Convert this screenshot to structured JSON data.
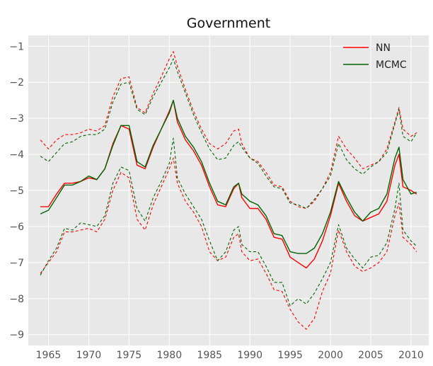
{
  "chart_data": {
    "type": "line",
    "title": "Government",
    "xlabel": "",
    "ylabel": "",
    "xlim": [
      1962.5,
      2012.2
    ],
    "ylim": [
      -9.3,
      -0.7
    ],
    "x_ticks": [
      1965,
      1970,
      1975,
      1980,
      1985,
      1990,
      1995,
      2000,
      2005,
      2010
    ],
    "x_tick_labels": [
      "1965",
      "1970",
      "1975",
      "1980",
      "1985",
      "1990",
      "1995",
      "2000",
      "2005",
      "2010"
    ],
    "y_ticks": [
      -1,
      -2,
      -3,
      -4,
      -5,
      -6,
      -7,
      -8,
      -9
    ],
    "y_tick_labels": [
      "−1",
      "−2",
      "−3",
      "−4",
      "−5",
      "−6",
      "−7",
      "−8",
      "−9"
    ],
    "grid": true,
    "legend_position": "top-right",
    "background": "#e8e8e8",
    "colors": {
      "NN": "#ff0000",
      "MCMC": "#006400"
    },
    "legend": [
      {
        "label": "NN",
        "color": "#ff0000"
      },
      {
        "label": "MCMC",
        "color": "#006400"
      }
    ],
    "series": [
      {
        "name": "NN",
        "role": "mean",
        "style": "solid",
        "x": [
          1964.0,
          1965.0,
          1966.0,
          1967.0,
          1968.0,
          1969.0,
          1970.0,
          1971.0,
          1972.0,
          1973.0,
          1974.0,
          1975.0,
          1976.0,
          1977.0,
          1978.0,
          1979.0,
          1980.0,
          1980.5,
          1981.0,
          1982.0,
          1983.0,
          1984.0,
          1985.0,
          1986.0,
          1987.0,
          1988.0,
          1988.6,
          1989.0,
          1990.0,
          1991.0,
          1992.0,
          1993.0,
          1994.0,
          1995.0,
          1996.0,
          1997.0,
          1998.0,
          1999.0,
          2000.0,
          2001.0,
          2002.0,
          2003.0,
          2004.0,
          2005.0,
          2006.0,
          2007.0,
          2008.0,
          2008.5,
          2009.0,
          2010.0,
          2010.7
        ],
        "values": [
          -5.45,
          -5.45,
          -5.1,
          -4.8,
          -4.8,
          -4.75,
          -4.65,
          -4.7,
          -4.4,
          -3.7,
          -3.2,
          -3.3,
          -4.3,
          -4.4,
          -3.8,
          -3.3,
          -2.8,
          -2.5,
          -3.1,
          -3.6,
          -3.9,
          -4.3,
          -4.9,
          -5.4,
          -5.45,
          -4.95,
          -4.8,
          -5.2,
          -5.5,
          -5.5,
          -5.8,
          -6.3,
          -6.35,
          -6.85,
          -7.0,
          -7.15,
          -6.9,
          -6.4,
          -5.7,
          -4.8,
          -5.3,
          -5.7,
          -5.85,
          -5.75,
          -5.65,
          -5.3,
          -4.3,
          -4.0,
          -4.9,
          -5.0,
          -5.1
        ]
      },
      {
        "name": "NN",
        "role": "upper",
        "style": "dashed",
        "x": [
          1964.0,
          1965.0,
          1966.0,
          1967.0,
          1968.0,
          1969.0,
          1970.0,
          1971.0,
          1972.0,
          1973.0,
          1974.0,
          1975.0,
          1976.0,
          1977.0,
          1978.0,
          1979.0,
          1980.0,
          1980.5,
          1981.0,
          1982.0,
          1983.0,
          1984.0,
          1985.0,
          1986.0,
          1987.0,
          1988.0,
          1988.6,
          1989.0,
          1990.0,
          1991.0,
          1992.0,
          1993.0,
          1994.0,
          1995.0,
          1996.0,
          1997.0,
          1998.0,
          1999.0,
          2000.0,
          2001.0,
          2002.0,
          2003.0,
          2004.0,
          2005.0,
          2006.0,
          2007.0,
          2008.0,
          2008.5,
          2009.0,
          2010.0,
          2010.7
        ],
        "values": [
          -3.6,
          -3.85,
          -3.6,
          -3.45,
          -3.45,
          -3.4,
          -3.3,
          -3.35,
          -3.2,
          -2.4,
          -1.9,
          -1.85,
          -2.7,
          -2.85,
          -2.3,
          -1.85,
          -1.35,
          -1.15,
          -1.55,
          -2.2,
          -2.8,
          -3.3,
          -3.7,
          -3.85,
          -3.7,
          -3.35,
          -3.3,
          -3.7,
          -4.1,
          -4.2,
          -4.5,
          -4.85,
          -4.9,
          -5.3,
          -5.45,
          -5.5,
          -5.3,
          -4.95,
          -4.5,
          -3.5,
          -3.85,
          -4.1,
          -4.4,
          -4.3,
          -4.2,
          -3.85,
          -3.1,
          -2.7,
          -3.3,
          -3.5,
          -3.4
        ]
      },
      {
        "name": "NN",
        "role": "lower",
        "style": "dashed",
        "x": [
          1964.0,
          1965.0,
          1966.0,
          1967.0,
          1968.0,
          1969.0,
          1970.0,
          1971.0,
          1972.0,
          1973.0,
          1974.0,
          1975.0,
          1976.0,
          1977.0,
          1978.0,
          1979.0,
          1980.0,
          1980.5,
          1981.0,
          1982.0,
          1983.0,
          1984.0,
          1985.0,
          1986.0,
          1987.0,
          1988.0,
          1988.6,
          1989.0,
          1990.0,
          1991.0,
          1992.0,
          1993.0,
          1994.0,
          1995.0,
          1996.0,
          1997.0,
          1998.0,
          1999.0,
          2000.0,
          2001.0,
          2002.0,
          2003.0,
          2004.0,
          2005.0,
          2006.0,
          2007.0,
          2008.0,
          2008.5,
          2009.0,
          2010.0,
          2010.7
        ],
        "values": [
          -7.3,
          -7.0,
          -6.7,
          -6.15,
          -6.15,
          -6.1,
          -6.05,
          -6.15,
          -5.8,
          -5.0,
          -4.5,
          -4.65,
          -5.8,
          -6.1,
          -5.4,
          -4.9,
          -4.4,
          -4.1,
          -4.8,
          -5.3,
          -5.6,
          -6.0,
          -6.7,
          -6.95,
          -6.85,
          -6.3,
          -6.2,
          -6.7,
          -6.95,
          -6.9,
          -7.3,
          -7.75,
          -7.8,
          -8.3,
          -8.65,
          -8.85,
          -8.55,
          -7.8,
          -7.3,
          -6.1,
          -6.7,
          -7.1,
          -7.25,
          -7.15,
          -7.0,
          -6.7,
          -5.7,
          -5.35,
          -6.3,
          -6.5,
          -6.7
        ]
      },
      {
        "name": "MCMC",
        "role": "mean",
        "style": "solid",
        "x": [
          1964.0,
          1965.0,
          1966.0,
          1967.0,
          1968.0,
          1969.0,
          1970.0,
          1971.0,
          1972.0,
          1973.0,
          1974.0,
          1975.0,
          1976.0,
          1977.0,
          1978.0,
          1979.0,
          1980.0,
          1980.5,
          1981.0,
          1982.0,
          1983.0,
          1984.0,
          1985.0,
          1986.0,
          1987.0,
          1988.0,
          1988.6,
          1989.0,
          1990.0,
          1991.0,
          1992.0,
          1993.0,
          1994.0,
          1995.0,
          1996.0,
          1997.0,
          1998.0,
          1999.0,
          2000.0,
          2001.0,
          2002.0,
          2003.0,
          2004.0,
          2005.0,
          2006.0,
          2007.0,
          2008.0,
          2008.5,
          2009.0,
          2010.0,
          2010.7
        ],
        "values": [
          -5.65,
          -5.55,
          -5.2,
          -4.85,
          -4.85,
          -4.75,
          -4.6,
          -4.7,
          -4.4,
          -3.75,
          -3.2,
          -3.2,
          -4.2,
          -4.35,
          -3.75,
          -3.3,
          -2.85,
          -2.5,
          -3.0,
          -3.5,
          -3.8,
          -4.2,
          -4.8,
          -5.3,
          -5.4,
          -4.9,
          -4.8,
          -5.1,
          -5.3,
          -5.4,
          -5.7,
          -6.2,
          -6.25,
          -6.7,
          -6.75,
          -6.75,
          -6.6,
          -6.2,
          -5.6,
          -4.75,
          -5.2,
          -5.6,
          -5.85,
          -5.6,
          -5.5,
          -5.1,
          -4.1,
          -3.8,
          -4.7,
          -5.1,
          -5.05
        ]
      },
      {
        "name": "MCMC",
        "role": "upper",
        "style": "dashed",
        "x": [
          1964.0,
          1965.0,
          1966.0,
          1967.0,
          1968.0,
          1969.0,
          1970.0,
          1971.0,
          1972.0,
          1973.0,
          1974.0,
          1975.0,
          1976.0,
          1977.0,
          1978.0,
          1979.0,
          1980.0,
          1980.5,
          1981.0,
          1982.0,
          1983.0,
          1984.0,
          1985.0,
          1986.0,
          1987.0,
          1988.0,
          1988.6,
          1989.0,
          1990.0,
          1991.0,
          1992.0,
          1993.0,
          1994.0,
          1995.0,
          1996.0,
          1997.0,
          1998.0,
          1999.0,
          2000.0,
          2001.0,
          2002.0,
          2003.0,
          2004.0,
          2005.0,
          2006.0,
          2007.0,
          2008.0,
          2008.5,
          2009.0,
          2010.0,
          2010.7
        ],
        "values": [
          -4.05,
          -4.2,
          -3.95,
          -3.7,
          -3.65,
          -3.5,
          -3.45,
          -3.45,
          -3.3,
          -2.55,
          -2.05,
          -2.0,
          -2.75,
          -2.9,
          -2.4,
          -2.0,
          -1.6,
          -1.35,
          -1.7,
          -2.3,
          -2.9,
          -3.4,
          -3.85,
          -4.15,
          -4.1,
          -3.75,
          -3.65,
          -3.8,
          -4.1,
          -4.25,
          -4.6,
          -4.9,
          -4.95,
          -5.35,
          -5.4,
          -5.5,
          -5.25,
          -4.95,
          -4.6,
          -3.7,
          -4.15,
          -4.4,
          -4.55,
          -4.35,
          -4.2,
          -3.95,
          -3.15,
          -2.75,
          -3.5,
          -3.65,
          -3.4
        ]
      },
      {
        "name": "MCMC",
        "role": "lower",
        "style": "dashed",
        "x": [
          1964.0,
          1965.0,
          1966.0,
          1967.0,
          1968.0,
          1969.0,
          1970.0,
          1971.0,
          1972.0,
          1973.0,
          1974.0,
          1975.0,
          1976.0,
          1977.0,
          1978.0,
          1979.0,
          1980.0,
          1980.5,
          1981.0,
          1982.0,
          1983.0,
          1984.0,
          1985.0,
          1986.0,
          1987.0,
          1988.0,
          1988.6,
          1989.0,
          1990.0,
          1991.0,
          1992.0,
          1993.0,
          1994.0,
          1995.0,
          1996.0,
          1997.0,
          1998.0,
          1999.0,
          2000.0,
          2001.0,
          2002.0,
          2003.0,
          2004.0,
          2005.0,
          2006.0,
          2007.0,
          2008.0,
          2008.5,
          2009.0,
          2010.0,
          2010.7
        ],
        "values": [
          -7.35,
          -6.95,
          -6.6,
          -6.05,
          -6.1,
          -5.9,
          -5.95,
          -6.0,
          -5.7,
          -4.8,
          -4.35,
          -4.45,
          -5.5,
          -5.85,
          -5.2,
          -4.75,
          -4.25,
          -3.55,
          -4.65,
          -5.1,
          -5.45,
          -5.8,
          -6.4,
          -6.95,
          -6.7,
          -6.1,
          -6.0,
          -6.5,
          -6.7,
          -6.7,
          -7.1,
          -7.55,
          -7.55,
          -8.2,
          -8.0,
          -8.15,
          -7.85,
          -7.45,
          -7.0,
          -5.95,
          -6.6,
          -6.9,
          -7.15,
          -6.85,
          -6.8,
          -6.45,
          -5.5,
          -4.8,
          -6.1,
          -6.4,
          -6.55
        ]
      }
    ]
  }
}
